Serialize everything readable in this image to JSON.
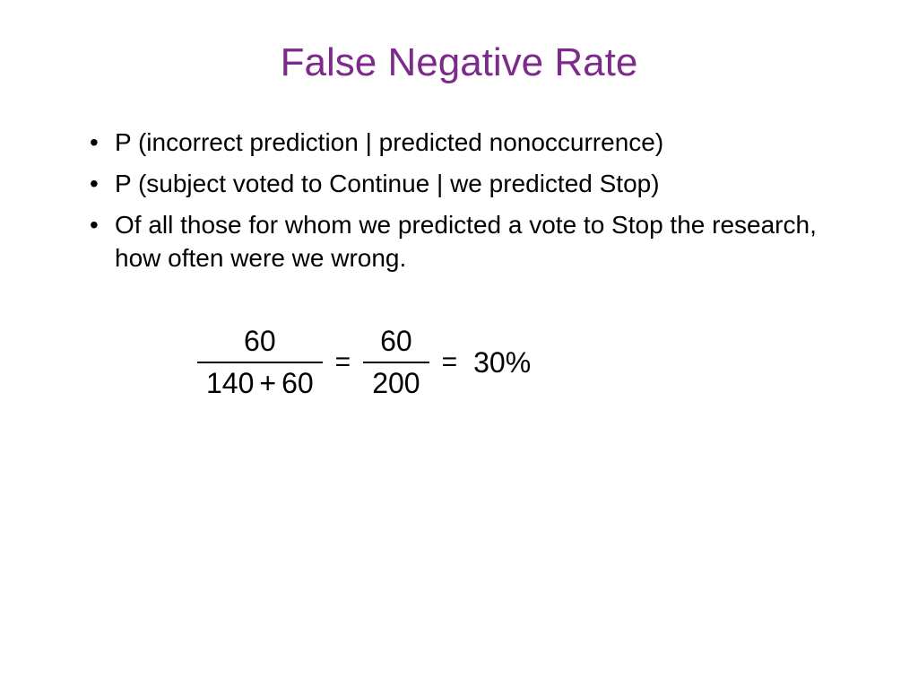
{
  "title": {
    "text": "False Negative Rate",
    "color": "#7c2b8a",
    "fontsize": 44
  },
  "bullets": {
    "items": [
      "P (incorrect prediction | predicted nonoccurrence)",
      "P (subject voted to Continue | we predicted Stop)",
      "Of all those for whom we predicted a vote to Stop the research, how often were we wrong."
    ],
    "fontsize": 28,
    "color": "#000000"
  },
  "equation": {
    "frac1": {
      "num": "60",
      "den_a": "140",
      "den_op": "+",
      "den_b": "60"
    },
    "eq1": "=",
    "frac2": {
      "num": "60",
      "den": "200"
    },
    "eq2": "=",
    "result": "30%",
    "fontsize": 32,
    "color": "#000000"
  },
  "background_color": "#ffffff"
}
